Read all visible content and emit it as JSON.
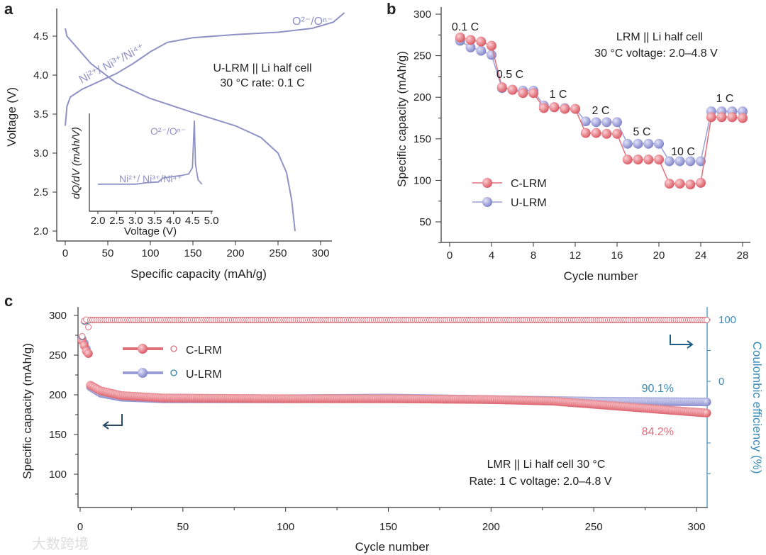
{
  "chart_data": [
    {
      "panel": "a",
      "type": "line",
      "panel_label": "a",
      "xlabel": "Specific capacity (mAh/g)",
      "ylabel": "Voltage (V)",
      "xlim": [
        0,
        330
      ],
      "ylim": [
        2.0,
        4.8
      ],
      "xticks": [
        "0",
        "50",
        "100",
        "150",
        "200",
        "250",
        "300"
      ],
      "yticks": [
        "2.0",
        "2.5",
        "3.0",
        "3.5",
        "4.0",
        "4.5"
      ],
      "annotations": {
        "title1": "U-LRM || Li half cell",
        "title2": "30 °C rate: 0.1 C",
        "ni": "Ni²⁺/ Ni³⁺/Ni⁴⁺",
        "o": "O²⁻/Oⁿ⁻"
      },
      "series": [
        {
          "name": "charge",
          "points": [
            [
              0,
              3.35
            ],
            [
              2,
              3.6
            ],
            [
              6,
              3.72
            ],
            [
              20,
              3.82
            ],
            [
              40,
              3.92
            ],
            [
              60,
              4.02
            ],
            [
              80,
              4.15
            ],
            [
              100,
              4.3
            ],
            [
              120,
              4.42
            ],
            [
              150,
              4.48
            ],
            [
              200,
              4.52
            ],
            [
              250,
              4.55
            ],
            [
              290,
              4.6
            ],
            [
              315,
              4.68
            ],
            [
              328,
              4.8
            ]
          ]
        },
        {
          "name": "discharge",
          "points": [
            [
              0,
              4.6
            ],
            [
              2,
              4.5
            ],
            [
              10,
              4.4
            ],
            [
              30,
              4.15
            ],
            [
              60,
              3.9
            ],
            [
              100,
              3.7
            ],
            [
              150,
              3.52
            ],
            [
              200,
              3.35
            ],
            [
              230,
              3.2
            ],
            [
              250,
              3.0
            ],
            [
              260,
              2.75
            ],
            [
              266,
              2.4
            ],
            [
              270,
              2.0
            ]
          ]
        }
      ],
      "inset": {
        "xlabel": "Voltage (V)",
        "ylabel": "dQ/dV (mAh/V)",
        "xlim": [
          2.0,
          5.0
        ],
        "xticks": [
          "2.0",
          "2.5",
          "3.0",
          "3.5",
          "4.0",
          "4.5",
          "5.0"
        ],
        "annotations": {
          "o": "O²⁻/Oⁿ⁻",
          "ni": "Ni²⁺/ Ni³⁺/Ni⁴⁺"
        },
        "points": [
          [
            2.0,
            0.12
          ],
          [
            3.0,
            0.12
          ],
          [
            3.3,
            0.14
          ],
          [
            3.6,
            0.15
          ],
          [
            3.7,
            0.2
          ],
          [
            3.9,
            0.22
          ],
          [
            4.2,
            0.24
          ],
          [
            4.4,
            0.26
          ],
          [
            4.5,
            0.35
          ],
          [
            4.55,
            1.0
          ],
          [
            4.58,
            0.4
          ],
          [
            4.65,
            0.18
          ],
          [
            4.75,
            0.12
          ]
        ]
      }
    },
    {
      "panel": "b",
      "type": "line",
      "panel_label": "b",
      "xlabel": "Cycle number",
      "ylabel": "Specific capacity (mAh/g)",
      "xlim": [
        0,
        28
      ],
      "ylim": [
        25,
        300
      ],
      "xticks": [
        "0",
        "4",
        "8",
        "12",
        "16",
        "20",
        "24",
        "28"
      ],
      "yticks": [
        "50",
        "100",
        "150",
        "200",
        "250",
        "300"
      ],
      "rate_labels": [
        "0.1 C",
        "0.5 C",
        "1 C",
        "2 C",
        "5 C",
        "10 C",
        "1 C"
      ],
      "annotations": {
        "line1": "LRM || Li half cell",
        "line2": "30 °C voltage: 2.0–4.8 V"
      },
      "x": [
        1,
        2,
        3,
        4,
        5,
        6,
        7,
        8,
        9,
        10,
        11,
        12,
        13,
        14,
        15,
        16,
        17,
        18,
        19,
        20,
        21,
        22,
        23,
        24,
        25,
        26,
        27,
        28
      ],
      "series": [
        {
          "name": "C-LRM",
          "color": "#e0707a",
          "values": [
            272,
            269,
            267,
            262,
            212,
            209,
            205,
            205,
            187,
            188,
            186,
            186,
            157,
            157,
            156,
            156,
            125,
            125,
            125,
            125,
            96,
            96,
            95,
            97,
            176,
            176,
            176,
            175
          ]
        },
        {
          "name": "U-LRM",
          "color": "#9a9dd6",
          "values": [
            268,
            260,
            256,
            251,
            211,
            209,
            208,
            208,
            190,
            188,
            187,
            186,
            171,
            170,
            170,
            170,
            144,
            144,
            144,
            144,
            123,
            123,
            123,
            123,
            183,
            183,
            183,
            183
          ]
        }
      ]
    },
    {
      "panel": "c",
      "type": "scatter",
      "panel_label": "c",
      "xlabel": "Cycle number",
      "ylabel": "Specific capacity (mAh/g)",
      "y2label": "Coulombic efficiency (%)",
      "xlim": [
        0,
        305
      ],
      "ylim": [
        60,
        310
      ],
      "y2lim": [
        -200,
        120
      ],
      "xticks": [
        "0",
        "50",
        "100",
        "150",
        "200",
        "250",
        "300"
      ],
      "yticks": [
        "100",
        "150",
        "200",
        "250",
        "300"
      ],
      "y2ticks": [
        "0",
        "100"
      ],
      "annotations": {
        "u_retention": "90.1%",
        "c_retention": "84.2%",
        "line1": "LMR || Li half cell 30 °C",
        "line2": "Rate: 1 C voltage: 2.0–4.8 V"
      },
      "legend": [
        "C-LRM",
        "U-LRM"
      ],
      "series": [
        {
          "name": "C-LRM capacity",
          "color": "#e0707a",
          "points": [
            [
              1,
              268
            ],
            [
              2,
              262
            ],
            [
              3,
              255
            ],
            [
              4,
              252
            ],
            [
              5,
              212
            ],
            [
              10,
              205
            ],
            [
              20,
              199
            ],
            [
              40,
              196
            ],
            [
              100,
              195
            ],
            [
              150,
              195
            ],
            [
              200,
              194
            ],
            [
              230,
              192
            ],
            [
              260,
              186
            ],
            [
              305,
              177
            ]
          ]
        },
        {
          "name": "U-LRM capacity",
          "color": "#9a9dd6",
          "points": [
            [
              1,
              270
            ],
            [
              2,
              265
            ],
            [
              3,
              258
            ],
            [
              4,
              252
            ],
            [
              5,
              210
            ],
            [
              10,
              202
            ],
            [
              20,
              197
            ],
            [
              40,
              195
            ],
            [
              100,
              195
            ],
            [
              150,
              196
            ],
            [
              200,
              194
            ],
            [
              250,
              192
            ],
            [
              305,
              191
            ]
          ]
        },
        {
          "name": "C-LRM CE",
          "color": "#e0707a",
          "points": [
            [
              1,
              73
            ],
            [
              2,
              98
            ],
            [
              3,
              100
            ],
            [
              4,
              88
            ],
            [
              5,
              99.5
            ],
            [
              305,
              99.5
            ]
          ]
        },
        {
          "name": "U-LRM CE",
          "color": "#2a7fa8",
          "points": [
            [
              1,
              72
            ],
            [
              2,
              97
            ],
            [
              5,
              99.5
            ],
            [
              305,
              99.5
            ]
          ]
        }
      ]
    }
  ],
  "watermark": "大数跨境"
}
